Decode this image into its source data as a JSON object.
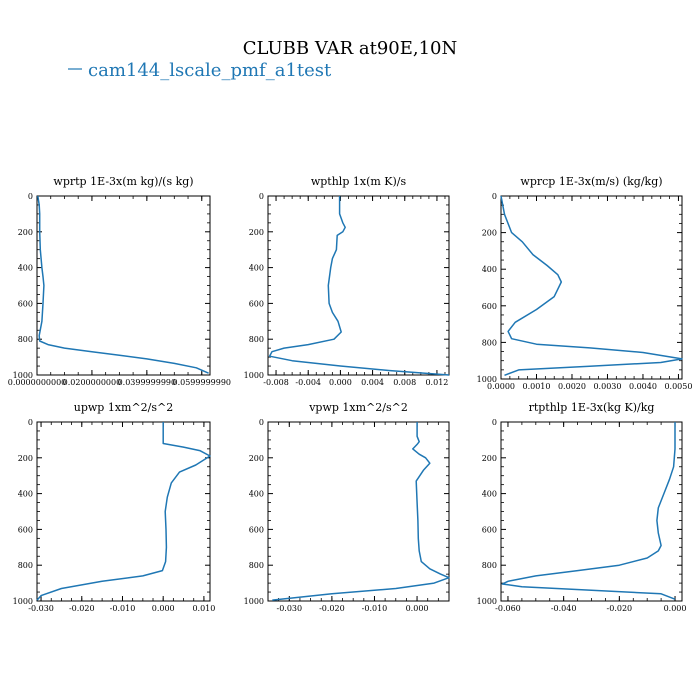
{
  "figure": {
    "title": "CLUBB VAR at90E,10N",
    "legend": {
      "label": "cam144_lscale_pmf_a1test",
      "color": "#1f77b4"
    },
    "line_color": "#1f77b4"
  },
  "chart_data": [
    {
      "type": "line",
      "title": "wprtp  1E-3x(m kg)/(s kg)",
      "xlim": [
        0.0,
        0.063
      ],
      "ylim": [
        1000,
        0
      ],
      "xticks": [
        0.0,
        0.02,
        0.04,
        0.06
      ],
      "xtick_labels": [
        "0.0000000000",
        "0.0200000000",
        "0.0399999990",
        "0.0599999990"
      ],
      "yticks": [
        0,
        200,
        400,
        600,
        800,
        1000
      ],
      "ytick_labels": [
        "0",
        "200",
        "400",
        "600",
        "800",
        "1000"
      ],
      "series": [
        {
          "x": [
            0.0003,
            0.0008,
            0.001,
            0.001,
            0.0012,
            0.0018,
            0.0022,
            0.0025,
            0.0022,
            0.0018,
            0.0008,
            0.001,
            0.004,
            0.01,
            0.02,
            0.03,
            0.04,
            0.05,
            0.058,
            0.0625
          ],
          "y": [
            0,
            50,
            100,
            200,
            300,
            400,
            450,
            500,
            600,
            700,
            780,
            810,
            830,
            850,
            870,
            890,
            910,
            935,
            960,
            990
          ]
        }
      ]
    },
    {
      "type": "line",
      "title": "wpthlp  1x(m K)/s",
      "xlim": [
        -0.009,
        0.0135
      ],
      "ylim": [
        1000,
        0
      ],
      "xticks": [
        -0.008,
        -0.004,
        0.0,
        0.004,
        0.008,
        0.012
      ],
      "xtick_labels": [
        "-0.008",
        "-0.004",
        "0.000",
        "0.004",
        "0.008",
        "0.012"
      ],
      "yticks": [
        0,
        200,
        400,
        600,
        800,
        1000
      ],
      "ytick_labels": [
        "0",
        "200",
        "400",
        "600",
        "800",
        "1000"
      ],
      "series": [
        {
          "x": [
            -0.0001,
            -0.0001,
            0.0003,
            0.0006,
            0.0003,
            -0.0004,
            -0.0005,
            -0.001,
            -0.0012,
            -0.0015,
            -0.0014,
            -0.001,
            -0.0003,
            0.0001,
            -0.0008,
            -0.004,
            -0.007,
            -0.0085,
            -0.0088,
            -0.006,
            0.0,
            0.006,
            0.012,
            0.0135
          ],
          "y": [
            0,
            100,
            150,
            175,
            200,
            220,
            300,
            350,
            400,
            500,
            600,
            650,
            700,
            760,
            800,
            830,
            850,
            870,
            895,
            920,
            950,
            975,
            995,
            1000
          ]
        }
      ]
    },
    {
      "type": "line",
      "title": "wprcp  1E-3x(m/s) (kg/kg)",
      "xlim": [
        0.0,
        0.0051
      ],
      "ylim": [
        1000,
        0
      ],
      "xticks": [
        0.0,
        0.001,
        0.002,
        0.003,
        0.004,
        0.005
      ],
      "xtick_labels": [
        "0.0000",
        "0.0010",
        "0.0020",
        "0.0030",
        "0.0040",
        "0.0050"
      ],
      "yticks": [
        0,
        200,
        400,
        600,
        800,
        1000
      ],
      "ytick_labels": [
        "0",
        "200",
        "400",
        "600",
        "800",
        "1000"
      ],
      "series": [
        {
          "x": [
            0.0,
            0.0001,
            0.0003,
            0.0006,
            0.0009,
            0.0013,
            0.0016,
            0.0017,
            0.0015,
            0.001,
            0.0004,
            0.0002,
            0.0003,
            0.001,
            0.0025,
            0.004,
            0.0051,
            0.0045,
            0.0025,
            0.0005,
            0.0001
          ],
          "y": [
            0,
            100,
            200,
            250,
            320,
            380,
            430,
            470,
            550,
            620,
            690,
            740,
            780,
            810,
            830,
            855,
            890,
            910,
            930,
            950,
            980
          ]
        }
      ]
    },
    {
      "type": "line",
      "title": "upwp  1xm^2/s^2",
      "xlim": [
        -0.031,
        0.0115
      ],
      "ylim": [
        1000,
        0
      ],
      "xticks": [
        -0.03,
        -0.02,
        -0.01,
        0.0,
        0.01
      ],
      "xtick_labels": [
        "-0.030",
        "-0.020",
        "-0.010",
        "0.000",
        "0.010"
      ],
      "yticks": [
        0,
        200,
        400,
        600,
        800,
        1000
      ],
      "ytick_labels": [
        "0",
        "200",
        "400",
        "600",
        "800",
        "1000"
      ],
      "series": [
        {
          "x": [
            0.0,
            0.0,
            0.0,
            0.005,
            0.009,
            0.0115,
            0.008,
            0.004,
            0.002,
            0.001,
            0.0005,
            0.0007,
            0.0008,
            0.0006,
            -0.0002,
            -0.005,
            -0.015,
            -0.025,
            -0.03,
            -0.031
          ],
          "y": [
            0,
            50,
            120,
            140,
            160,
            190,
            240,
            280,
            340,
            420,
            500,
            600,
            700,
            780,
            830,
            860,
            890,
            930,
            970,
            995
          ]
        }
      ]
    },
    {
      "type": "line",
      "title": "vpwp  1xm^2/s^2",
      "xlim": [
        -0.035,
        0.0075
      ],
      "ylim": [
        1000,
        0
      ],
      "xticks": [
        -0.03,
        -0.02,
        -0.01,
        0.0
      ],
      "xtick_labels": [
        "-0.030",
        "-0.020",
        "-0.010",
        "0.000"
      ],
      "yticks": [
        0,
        200,
        400,
        600,
        800,
        1000
      ],
      "ytick_labels": [
        "0",
        "200",
        "400",
        "600",
        "800",
        "1000"
      ],
      "series": [
        {
          "x": [
            0.0,
            0.0,
            0.0005,
            0.0,
            -0.001,
            0.0005,
            0.002,
            0.003,
            0.0015,
            -0.0002,
            0.0,
            0.0002,
            0.0003,
            0.0005,
            0.001,
            0.003,
            0.0055,
            0.0075,
            0.004,
            -0.005,
            -0.02,
            -0.034
          ],
          "y": [
            0,
            80,
            110,
            125,
            150,
            180,
            200,
            230,
            270,
            330,
            450,
            550,
            650,
            720,
            780,
            820,
            850,
            870,
            900,
            930,
            960,
            995
          ]
        }
      ]
    },
    {
      "type": "line",
      "title": "rtpthlp  1E-3x(kg K)/kg",
      "xlim": [
        -0.0625,
        0.0025
      ],
      "ylim": [
        1000,
        0
      ],
      "xticks": [
        -0.06,
        -0.04,
        -0.02,
        0.0
      ],
      "xtick_labels": [
        "-0.060",
        "-0.040",
        "-0.020",
        "0.000"
      ],
      "yticks": [
        0,
        200,
        400,
        600,
        800,
        1000
      ],
      "ytick_labels": [
        "0",
        "200",
        "400",
        "600",
        "800",
        "1000"
      ],
      "series": [
        {
          "x": [
            0.0,
            0.0,
            -0.0005,
            -0.002,
            -0.004,
            -0.006,
            -0.0065,
            -0.006,
            -0.005,
            -0.006,
            -0.01,
            -0.02,
            -0.035,
            -0.05,
            -0.06,
            -0.062,
            -0.055,
            -0.03,
            -0.005,
            0.0
          ],
          "y": [
            0,
            150,
            250,
            320,
            400,
            480,
            550,
            620,
            690,
            720,
            760,
            800,
            830,
            860,
            890,
            905,
            920,
            940,
            960,
            990
          ]
        }
      ]
    }
  ]
}
